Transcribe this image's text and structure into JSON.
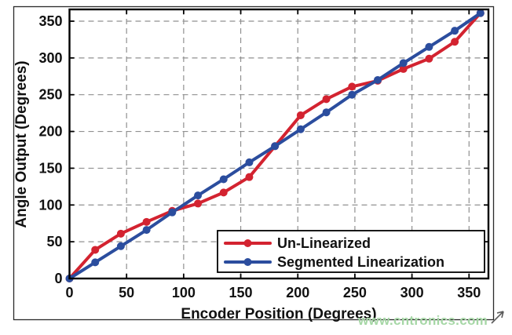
{
  "figure": {
    "watermark": "www.cntronics.com",
    "watermark_color": "#a6d7a6",
    "background_color": "#ffffff",
    "grid_color": "#909090",
    "frame_color": "#000000"
  },
  "chart_data": {
    "type": "line",
    "title": "",
    "xlabel": "Encoder Position (Degrees)",
    "ylabel": "Angle Output (Degrees)",
    "xlim": [
      0,
      367
    ],
    "ylim": [
      0,
      366
    ],
    "x_ticks": [
      0,
      50,
      100,
      150,
      200,
      250,
      300,
      350
    ],
    "y_ticks": [
      0,
      50,
      100,
      150,
      200,
      250,
      300,
      350
    ],
    "grid": true,
    "grid_style": "dashed",
    "legend_position": "lower right",
    "x": [
      0,
      22.5,
      45,
      67.5,
      90,
      112.5,
      135,
      157.5,
      180,
      202.5,
      225,
      247.5,
      270,
      292.5,
      315,
      337.5,
      360
    ],
    "series": [
      {
        "name": "Un-Linearized",
        "color": "#d32330",
        "marker": "circle",
        "values": [
          0,
          39,
          61,
          77,
          92,
          102,
          117,
          138,
          180,
          222,
          244,
          261,
          269,
          285,
          299,
          322,
          361
        ]
      },
      {
        "name": "Segmented Linearization",
        "color": "#2b4d9e",
        "marker": "circle",
        "values": [
          0,
          22,
          44,
          66,
          90,
          113,
          135,
          158,
          180,
          203,
          226,
          250,
          270,
          293,
          315,
          337,
          361
        ]
      }
    ]
  }
}
